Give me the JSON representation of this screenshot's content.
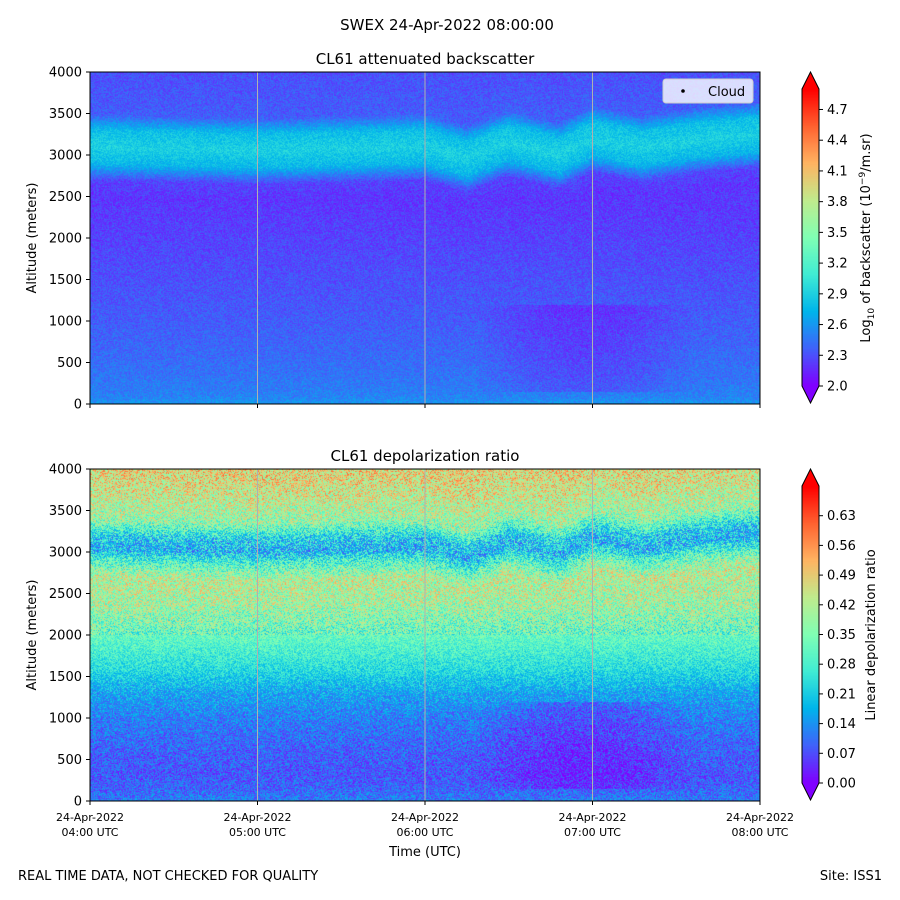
{
  "figure": {
    "suptitle": "SWEX 24-Apr-2022 08:00:00",
    "footer_left": "REAL TIME DATA, NOT CHECKED FOR QUALITY",
    "footer_right": "Site: ISS1"
  },
  "chart_data": [
    {
      "type": "heatmap",
      "title": "CL61 attenuated backscatter",
      "ylabel": "Altitude (meters)",
      "xlabel": "",
      "ylim": [
        0,
        4000
      ],
      "yticks": [
        0,
        500,
        1000,
        1500,
        2000,
        2500,
        3000,
        3500,
        4000
      ],
      "xticks": [
        "04:00",
        "05:00",
        "06:00",
        "07:00",
        "08:00"
      ],
      "xtick_labels_shown": false,
      "grid": "vertical",
      "colormap": "rainbow",
      "colorbar": {
        "label_main": "Log",
        "label_sub": "10",
        "label_rest": " of backscatter (10",
        "label_sup": "−9",
        "label_end": "/m.sr)",
        "range": [
          2.0,
          4.9
        ],
        "ticks": [
          "2.0",
          "2.3",
          "2.6",
          "2.9",
          "3.2",
          "3.5",
          "3.8",
          "4.1",
          "4.4",
          "4.7"
        ],
        "extend": "both"
      },
      "legend": {
        "placement": "top-right",
        "entries": [
          "Cloud"
        ],
        "marker_color": "#000000"
      },
      "profile": {
        "altitudes": [
          0,
          100,
          300,
          600,
          1000,
          1500,
          2000,
          2500,
          2700,
          2900,
          3100,
          3300,
          3500,
          4000
        ],
        "values": [
          2.6,
          2.5,
          2.45,
          2.4,
          2.35,
          2.3,
          2.25,
          2.2,
          2.25,
          2.75,
          2.9,
          2.8,
          2.35,
          2.3
        ]
      },
      "layer_center_by_hour": {
        "hours": [
          0,
          1,
          2,
          2.25,
          2.5,
          2.8,
          3,
          3.3,
          3.6,
          4
        ],
        "altitude": [
          3100,
          3050,
          3100,
          2960,
          3150,
          3000,
          3200,
          3080,
          3180,
          3250
        ]
      }
    },
    {
      "type": "heatmap",
      "title": "CL61 depolarization ratio",
      "ylabel": "Altitude (meters)",
      "xlabel": "Time (UTC)",
      "ylim": [
        0,
        4000
      ],
      "yticks": [
        0,
        500,
        1000,
        1500,
        2000,
        2500,
        3000,
        3500,
        4000
      ],
      "xticks": [
        "04:00",
        "05:00",
        "06:00",
        "07:00",
        "08:00"
      ],
      "xtick_labels": [
        {
          "date": "24-Apr-2022",
          "time": "04:00 UTC"
        },
        {
          "date": "24-Apr-2022",
          "time": "05:00 UTC"
        },
        {
          "date": "24-Apr-2022",
          "time": "06:00 UTC"
        },
        {
          "date": "24-Apr-2022",
          "time": "07:00 UTC"
        },
        {
          "date": "24-Apr-2022",
          "time": "08:00 UTC"
        }
      ],
      "grid": "vertical",
      "colormap": "rainbow",
      "colorbar": {
        "label": "Linear depolarization ratio",
        "range": [
          0.0,
          0.7
        ],
        "ticks": [
          "0.00",
          "0.07",
          "0.14",
          "0.21",
          "0.28",
          "0.35",
          "0.42",
          "0.49",
          "0.56",
          "0.63"
        ],
        "extend": "both"
      },
      "profile": {
        "altitudes": [
          0,
          100,
          300,
          600,
          1000,
          1300,
          1600,
          2000,
          2400,
          2700,
          2900,
          3050,
          3200,
          3400,
          3700,
          4000
        ],
        "values": [
          0.12,
          0.1,
          0.08,
          0.09,
          0.12,
          0.16,
          0.24,
          0.32,
          0.4,
          0.42,
          0.3,
          0.18,
          0.22,
          0.38,
          0.44,
          0.48
        ]
      }
    }
  ],
  "colors": {
    "rainbow": [
      "#8000ff",
      "#4062fa",
      "#00b5eb",
      "#40ecd4",
      "#80ffb4",
      "#c0eb8d",
      "#ffb462",
      "#ff6230",
      "#ff0000"
    ]
  }
}
